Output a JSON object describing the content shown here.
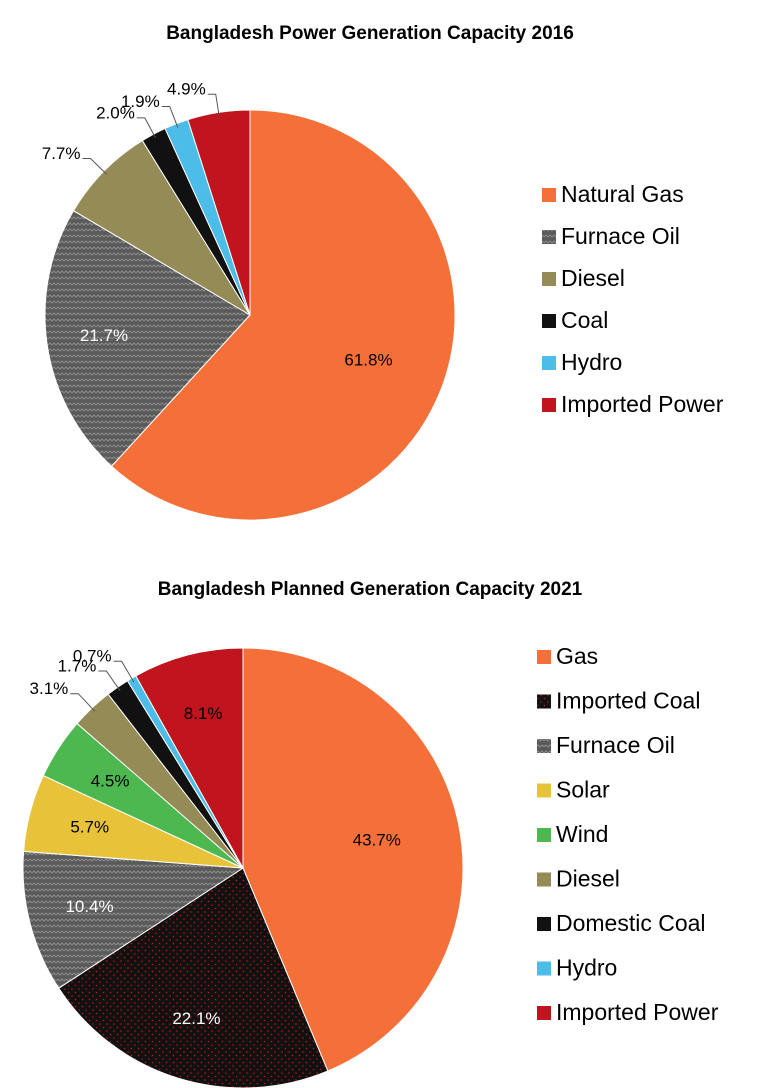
{
  "chart_data": [
    {
      "type": "pie",
      "title": "Bangladesh Power Generation Capacity 2016",
      "categories": [
        "Natural Gas",
        "Furnace Oil",
        "Diesel",
        "Coal",
        "Hydro",
        "Imported Power"
      ],
      "values": [
        61.8,
        21.7,
        7.7,
        2.0,
        1.9,
        4.9
      ],
      "value_labels": [
        "61.8%",
        "21.7%",
        "7.7%",
        "2.0%",
        "1.9%",
        "4.9%"
      ],
      "colors": [
        "#f47038",
        "#5a5a5a",
        "#948b57",
        "#111111",
        "#4bbde8",
        "#c0141e"
      ],
      "textures": [
        null,
        "zigzag",
        null,
        null,
        null,
        null
      ],
      "legend": "right"
    },
    {
      "type": "pie",
      "title": "Bangladesh Planned Generation Capacity 2021",
      "categories": [
        "Gas",
        "Imported Coal",
        "Furnace Oil",
        "Solar",
        "Wind",
        "Diesel",
        "Domestic Coal",
        "Hydro",
        "Imported Power"
      ],
      "values": [
        43.7,
        22.1,
        10.4,
        5.7,
        4.5,
        3.1,
        1.7,
        0.7,
        8.1
      ],
      "value_labels": [
        "43.7%",
        "22.1%",
        "10.4%",
        "5.7%",
        "4.5%",
        "3.1%",
        "1.7%",
        "0.7%",
        "8.1%"
      ],
      "colors": [
        "#f47038",
        "#111111",
        "#5a5a5a",
        "#e8c33a",
        "#4cb84f",
        "#948b57",
        "#111111",
        "#4bbde8",
        "#c0141e"
      ],
      "textures": [
        null,
        "reddots",
        "zigzag",
        null,
        null,
        null,
        null,
        null,
        null
      ],
      "legend": "right"
    }
  ]
}
